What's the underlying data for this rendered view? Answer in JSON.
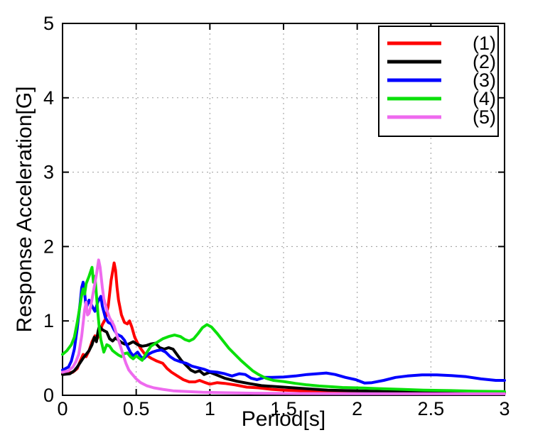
{
  "page": {
    "background": "#ffffff"
  },
  "chart_data": {
    "type": "line",
    "title": "",
    "xlabel": "Period[s]",
    "ylabel": "Response Acceleration[G]",
    "xlim": [
      0,
      3
    ],
    "ylim": [
      0,
      5
    ],
    "xticks": [
      0,
      0.5,
      1,
      1.5,
      2,
      2.5,
      3
    ],
    "xtick_labels": [
      "0",
      "0.5",
      "1",
      "1.5",
      "2",
      "2.5",
      "3"
    ],
    "yticks": [
      0,
      1,
      2,
      3,
      4,
      5
    ],
    "ytick_labels": [
      "0",
      "1",
      "2",
      "3",
      "4",
      "5"
    ],
    "grid": true,
    "grid_style": "dotted",
    "grid_color": "#9a9a9a",
    "frame_color": "#000000",
    "legend": {
      "position": "top-right",
      "border": true,
      "entries": [
        "(1)",
        "(2)",
        "(3)",
        "(4)",
        "(5)"
      ]
    },
    "series": [
      {
        "name": "(1)",
        "color": "#ff0000",
        "points": [
          [
            0,
            0.29
          ],
          [
            0.04,
            0.3
          ],
          [
            0.07,
            0.31
          ],
          [
            0.1,
            0.36
          ],
          [
            0.12,
            0.46
          ],
          [
            0.14,
            0.55
          ],
          [
            0.16,
            0.52
          ],
          [
            0.18,
            0.6
          ],
          [
            0.2,
            0.72
          ],
          [
            0.22,
            0.8
          ],
          [
            0.23,
            0.74
          ],
          [
            0.25,
            0.82
          ],
          [
            0.27,
            0.95
          ],
          [
            0.29,
            1.02
          ],
          [
            0.31,
            1.2
          ],
          [
            0.33,
            1.55
          ],
          [
            0.35,
            1.78
          ],
          [
            0.36,
            1.68
          ],
          [
            0.37,
            1.45
          ],
          [
            0.38,
            1.28
          ],
          [
            0.4,
            1.08
          ],
          [
            0.42,
            0.98
          ],
          [
            0.44,
            0.96
          ],
          [
            0.455,
            1.0
          ],
          [
            0.47,
            0.92
          ],
          [
            0.49,
            0.78
          ],
          [
            0.51,
            0.7
          ],
          [
            0.53,
            0.63
          ],
          [
            0.56,
            0.55
          ],
          [
            0.6,
            0.5
          ],
          [
            0.64,
            0.46
          ],
          [
            0.68,
            0.43
          ],
          [
            0.71,
            0.36
          ],
          [
            0.74,
            0.31
          ],
          [
            0.78,
            0.26
          ],
          [
            0.82,
            0.21
          ],
          [
            0.86,
            0.18
          ],
          [
            0.9,
            0.18
          ],
          [
            0.93,
            0.2
          ],
          [
            0.97,
            0.17
          ],
          [
            1.0,
            0.15
          ],
          [
            1.05,
            0.17
          ],
          [
            1.1,
            0.16
          ],
          [
            1.17,
            0.14
          ],
          [
            1.25,
            0.11
          ],
          [
            1.33,
            0.1
          ],
          [
            1.42,
            0.08
          ],
          [
            1.5,
            0.07
          ],
          [
            1.65,
            0.06
          ],
          [
            1.8,
            0.05
          ],
          [
            2.0,
            0.045
          ],
          [
            2.2,
            0.04
          ],
          [
            2.4,
            0.035
          ],
          [
            2.6,
            0.032
          ],
          [
            2.8,
            0.03
          ],
          [
            3.0,
            0.028
          ]
        ]
      },
      {
        "name": "(2)",
        "color": "#000000",
        "points": [
          [
            0,
            0.28
          ],
          [
            0.05,
            0.29
          ],
          [
            0.08,
            0.33
          ],
          [
            0.1,
            0.38
          ],
          [
            0.12,
            0.44
          ],
          [
            0.14,
            0.5
          ],
          [
            0.16,
            0.55
          ],
          [
            0.18,
            0.6
          ],
          [
            0.2,
            0.68
          ],
          [
            0.215,
            0.78
          ],
          [
            0.23,
            0.72
          ],
          [
            0.24,
            0.85
          ],
          [
            0.25,
            0.93
          ],
          [
            0.265,
            0.89
          ],
          [
            0.28,
            0.87
          ],
          [
            0.3,
            0.85
          ],
          [
            0.32,
            0.76
          ],
          [
            0.34,
            0.73
          ],
          [
            0.36,
            0.77
          ],
          [
            0.38,
            0.74
          ],
          [
            0.4,
            0.71
          ],
          [
            0.42,
            0.69
          ],
          [
            0.44,
            0.68
          ],
          [
            0.46,
            0.7
          ],
          [
            0.48,
            0.72
          ],
          [
            0.51,
            0.68
          ],
          [
            0.54,
            0.66
          ],
          [
            0.57,
            0.67
          ],
          [
            0.6,
            0.69
          ],
          [
            0.63,
            0.7
          ],
          [
            0.66,
            0.64
          ],
          [
            0.69,
            0.62
          ],
          [
            0.72,
            0.64
          ],
          [
            0.75,
            0.62
          ],
          [
            0.78,
            0.54
          ],
          [
            0.81,
            0.46
          ],
          [
            0.84,
            0.4
          ],
          [
            0.87,
            0.34
          ],
          [
            0.9,
            0.31
          ],
          [
            0.93,
            0.33
          ],
          [
            0.96,
            0.28
          ],
          [
            1.0,
            0.31
          ],
          [
            1.05,
            0.27
          ],
          [
            1.1,
            0.23
          ],
          [
            1.18,
            0.19
          ],
          [
            1.26,
            0.16
          ],
          [
            1.35,
            0.13
          ],
          [
            1.5,
            0.11
          ],
          [
            1.65,
            0.09
          ],
          [
            1.8,
            0.07
          ],
          [
            2.0,
            0.06
          ],
          [
            2.2,
            0.05
          ],
          [
            2.45,
            0.042
          ],
          [
            2.7,
            0.036
          ],
          [
            3.0,
            0.03
          ]
        ]
      },
      {
        "name": "(3)",
        "color": "#0000ff",
        "points": [
          [
            0,
            0.34
          ],
          [
            0.04,
            0.38
          ],
          [
            0.06,
            0.46
          ],
          [
            0.08,
            0.62
          ],
          [
            0.1,
            0.9
          ],
          [
            0.12,
            1.25
          ],
          [
            0.13,
            1.45
          ],
          [
            0.14,
            1.52
          ],
          [
            0.15,
            1.38
          ],
          [
            0.16,
            1.17
          ],
          [
            0.18,
            1.28
          ],
          [
            0.2,
            1.2
          ],
          [
            0.22,
            1.13
          ],
          [
            0.24,
            1.26
          ],
          [
            0.26,
            1.33
          ],
          [
            0.27,
            1.2
          ],
          [
            0.29,
            1.05
          ],
          [
            0.31,
            0.98
          ],
          [
            0.33,
            0.96
          ],
          [
            0.35,
            0.88
          ],
          [
            0.37,
            0.82
          ],
          [
            0.4,
            0.79
          ],
          [
            0.42,
            0.74
          ],
          [
            0.44,
            0.66
          ],
          [
            0.46,
            0.58
          ],
          [
            0.48,
            0.53
          ],
          [
            0.51,
            0.58
          ],
          [
            0.53,
            0.52
          ],
          [
            0.55,
            0.49
          ],
          [
            0.58,
            0.55
          ],
          [
            0.61,
            0.58
          ],
          [
            0.64,
            0.6
          ],
          [
            0.67,
            0.61
          ],
          [
            0.7,
            0.58
          ],
          [
            0.73,
            0.52
          ],
          [
            0.76,
            0.48
          ],
          [
            0.8,
            0.45
          ],
          [
            0.84,
            0.43
          ],
          [
            0.88,
            0.39
          ],
          [
            0.92,
            0.37
          ],
          [
            0.96,
            0.35
          ],
          [
            1.0,
            0.32
          ],
          [
            1.05,
            0.31
          ],
          [
            1.1,
            0.29
          ],
          [
            1.15,
            0.26
          ],
          [
            1.2,
            0.29
          ],
          [
            1.24,
            0.28
          ],
          [
            1.28,
            0.23
          ],
          [
            1.32,
            0.21
          ],
          [
            1.37,
            0.24
          ],
          [
            1.42,
            0.24
          ],
          [
            1.5,
            0.245
          ],
          [
            1.58,
            0.26
          ],
          [
            1.66,
            0.28
          ],
          [
            1.73,
            0.29
          ],
          [
            1.79,
            0.3
          ],
          [
            1.85,
            0.28
          ],
          [
            1.92,
            0.24
          ],
          [
            1.99,
            0.21
          ],
          [
            2.05,
            0.165
          ],
          [
            2.1,
            0.17
          ],
          [
            2.18,
            0.2
          ],
          [
            2.26,
            0.24
          ],
          [
            2.34,
            0.26
          ],
          [
            2.44,
            0.275
          ],
          [
            2.54,
            0.275
          ],
          [
            2.64,
            0.265
          ],
          [
            2.74,
            0.25
          ],
          [
            2.84,
            0.22
          ],
          [
            2.94,
            0.2
          ],
          [
            3.0,
            0.2
          ]
        ]
      },
      {
        "name": "(4)",
        "color": "#0ae00a",
        "points": [
          [
            0,
            0.55
          ],
          [
            0.03,
            0.6
          ],
          [
            0.06,
            0.68
          ],
          [
            0.08,
            0.78
          ],
          [
            0.1,
            0.98
          ],
          [
            0.12,
            1.22
          ],
          [
            0.13,
            1.35
          ],
          [
            0.14,
            1.43
          ],
          [
            0.15,
            1.36
          ],
          [
            0.16,
            1.5
          ],
          [
            0.18,
            1.6
          ],
          [
            0.2,
            1.72
          ],
          [
            0.21,
            1.52
          ],
          [
            0.22,
            1.6
          ],
          [
            0.23,
            1.35
          ],
          [
            0.24,
            1.1
          ],
          [
            0.25,
            0.9
          ],
          [
            0.26,
            0.75
          ],
          [
            0.28,
            0.58
          ],
          [
            0.3,
            0.68
          ],
          [
            0.32,
            0.66
          ],
          [
            0.34,
            0.6
          ],
          [
            0.36,
            0.57
          ],
          [
            0.38,
            0.54
          ],
          [
            0.4,
            0.52
          ],
          [
            0.42,
            0.56
          ],
          [
            0.44,
            0.57
          ],
          [
            0.46,
            0.52
          ],
          [
            0.48,
            0.49
          ],
          [
            0.5,
            0.53
          ],
          [
            0.52,
            0.5
          ],
          [
            0.54,
            0.47
          ],
          [
            0.57,
            0.57
          ],
          [
            0.6,
            0.66
          ],
          [
            0.64,
            0.71
          ],
          [
            0.68,
            0.76
          ],
          [
            0.72,
            0.79
          ],
          [
            0.76,
            0.81
          ],
          [
            0.8,
            0.79
          ],
          [
            0.83,
            0.75
          ],
          [
            0.86,
            0.73
          ],
          [
            0.89,
            0.76
          ],
          [
            0.92,
            0.83
          ],
          [
            0.95,
            0.91
          ],
          [
            0.98,
            0.95
          ],
          [
            1.01,
            0.92
          ],
          [
            1.05,
            0.83
          ],
          [
            1.09,
            0.73
          ],
          [
            1.13,
            0.63
          ],
          [
            1.17,
            0.55
          ],
          [
            1.21,
            0.47
          ],
          [
            1.25,
            0.4
          ],
          [
            1.29,
            0.33
          ],
          [
            1.33,
            0.28
          ],
          [
            1.38,
            0.23
          ],
          [
            1.43,
            0.2
          ],
          [
            1.5,
            0.185
          ],
          [
            1.58,
            0.16
          ],
          [
            1.66,
            0.14
          ],
          [
            1.74,
            0.125
          ],
          [
            1.82,
            0.115
          ],
          [
            1.9,
            0.105
          ],
          [
            2.0,
            0.1
          ],
          [
            2.15,
            0.09
          ],
          [
            2.3,
            0.08
          ],
          [
            2.45,
            0.07
          ],
          [
            2.6,
            0.065
          ],
          [
            2.8,
            0.055
          ],
          [
            3.0,
            0.05
          ]
        ]
      },
      {
        "name": "(5)",
        "color": "#ee6aee",
        "points": [
          [
            0,
            0.31
          ],
          [
            0.04,
            0.33
          ],
          [
            0.07,
            0.38
          ],
          [
            0.09,
            0.45
          ],
          [
            0.11,
            0.55
          ],
          [
            0.13,
            0.8
          ],
          [
            0.15,
            1.15
          ],
          [
            0.16,
            1.25
          ],
          [
            0.17,
            1.08
          ],
          [
            0.18,
            1.1
          ],
          [
            0.19,
            1.18
          ],
          [
            0.21,
            1.4
          ],
          [
            0.23,
            1.62
          ],
          [
            0.245,
            1.82
          ],
          [
            0.255,
            1.72
          ],
          [
            0.27,
            1.45
          ],
          [
            0.28,
            1.3
          ],
          [
            0.3,
            1.15
          ],
          [
            0.32,
            1.04
          ],
          [
            0.34,
            0.97
          ],
          [
            0.35,
            0.93
          ],
          [
            0.37,
            0.8
          ],
          [
            0.39,
            0.68
          ],
          [
            0.41,
            0.55
          ],
          [
            0.43,
            0.43
          ],
          [
            0.45,
            0.34
          ],
          [
            0.47,
            0.29
          ],
          [
            0.5,
            0.22
          ],
          [
            0.53,
            0.17
          ],
          [
            0.57,
            0.13
          ],
          [
            0.62,
            0.1
          ],
          [
            0.68,
            0.08
          ],
          [
            0.75,
            0.06
          ],
          [
            0.85,
            0.05
          ],
          [
            0.95,
            0.04
          ],
          [
            1.1,
            0.034
          ],
          [
            1.3,
            0.028
          ],
          [
            1.6,
            0.024
          ],
          [
            2.0,
            0.022
          ],
          [
            2.5,
            0.02
          ],
          [
            3.0,
            0.02
          ]
        ]
      }
    ]
  }
}
